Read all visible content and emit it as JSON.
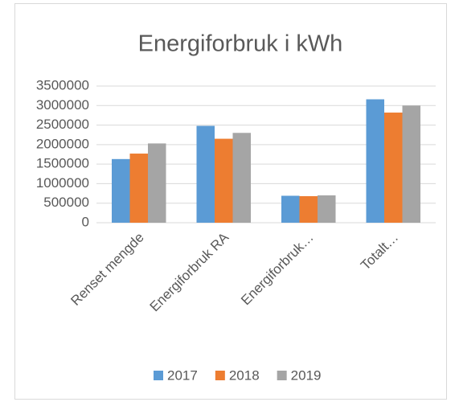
{
  "chart_data": {
    "type": "bar",
    "title": "Energiforbruk i kWh",
    "categories": [
      "Renset mengde",
      "Energiforbruk RA",
      "Energiforbruk…",
      "Totalt…"
    ],
    "series": [
      {
        "name": "2017",
        "color": "#5b9bd5",
        "values": [
          1630000,
          2480000,
          690000,
          3160000
        ]
      },
      {
        "name": "2018",
        "color": "#ed7d31",
        "values": [
          1770000,
          2150000,
          680000,
          2820000
        ]
      },
      {
        "name": "2019",
        "color": "#a5a5a5",
        "values": [
          2030000,
          2300000,
          700000,
          3000000
        ]
      }
    ],
    "ylim": [
      0,
      3500000
    ],
    "yticks": [
      0,
      500000,
      1000000,
      1500000,
      2000000,
      2500000,
      3000000,
      3500000
    ],
    "grid": true,
    "legend": "bottom"
  }
}
